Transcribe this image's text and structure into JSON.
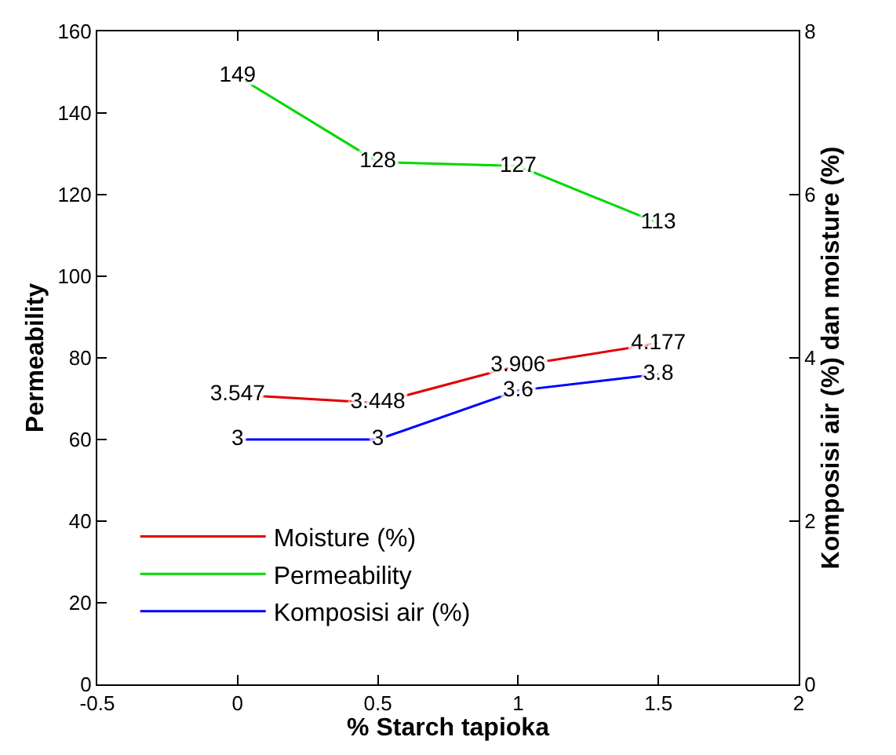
{
  "chart_data": {
    "type": "line",
    "xlabel": "% Starch tapioka",
    "ylabel": "Permeability",
    "y2label": "Komposisi air (%) dan moisture (%)",
    "x": [
      0,
      0.5,
      1,
      1.5
    ],
    "series": [
      {
        "name": "Moisture (%)",
        "color": "#e00000",
        "values": [
          3.547,
          3.448,
          3.906,
          4.177
        ],
        "axis": "y2"
      },
      {
        "name": "Permeability",
        "color": "#00d800",
        "values": [
          149,
          128,
          127,
          113
        ]
      },
      {
        "name": "Komposisi air (%)",
        "color": "#0000ff",
        "values": [
          3,
          3,
          3.6,
          3.8
        ],
        "axis": "y2"
      }
    ],
    "xlim": [
      -0.5,
      2
    ],
    "xticks": [
      -0.5,
      0,
      0.5,
      1,
      1.5,
      2
    ],
    "ylim": [
      0,
      160
    ],
    "yticks": [
      0,
      20,
      40,
      60,
      80,
      100,
      120,
      140,
      160
    ],
    "y2lim": [
      0,
      8
    ],
    "y2ticks": [
      0,
      2,
      4,
      6,
      8
    ],
    "data_labels": true,
    "legend": "bottom left",
    "marker": "none",
    "line_style": "solid"
  }
}
